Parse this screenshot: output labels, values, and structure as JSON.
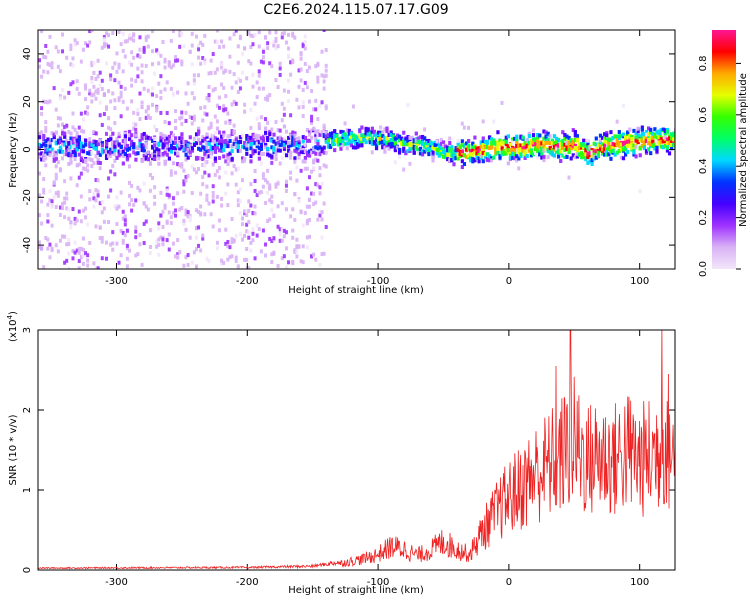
{
  "title": "C2E6.2024.115.07.17.G09",
  "chart_data": [
    {
      "type": "heatmap",
      "xlabel": "Height of straight line (km)",
      "ylabel": "Frequency (Hz)",
      "xlim": [
        -360,
        127
      ],
      "ylim": [
        -50,
        50
      ],
      "xticks": [
        -300,
        -200,
        -100,
        0,
        100
      ],
      "yticks": [
        -40,
        -20,
        0,
        20,
        40
      ],
      "colorbar": {
        "label": "Normalized spectral amplitude",
        "range": [
          0,
          0.93
        ],
        "ticks": [
          0.0,
          0.2,
          0.4,
          0.6,
          0.8
        ],
        "tick_labels": [
          "0.0",
          "0.2",
          "0.4",
          "0.6",
          "0.8"
        ],
        "colors": [
          "#f3e6fb",
          "#d9b3f5",
          "#9f33ff",
          "#4400ff",
          "#0033ff",
          "#00d8ff",
          "#00ff66",
          "#33ff00",
          "#e6ff00",
          "#ffaa00",
          "#ff0000",
          "#ff1493"
        ]
      },
      "ridge": {
        "x": [
          -360,
          -300,
          -250,
          -200,
          -160,
          -130,
          -110,
          -90,
          -80,
          -70,
          -60,
          -50,
          -40,
          -30,
          -20,
          -10,
          0,
          10,
          20,
          30,
          40,
          50,
          60,
          70,
          80,
          90,
          100,
          110,
          120,
          127
        ],
        "frequency": [
          1,
          1,
          1,
          1.5,
          2,
          4,
          5,
          4,
          2,
          2,
          1,
          -2,
          -1,
          -1,
          0,
          1,
          1,
          1,
          2,
          2,
          1,
          2,
          -2,
          1,
          2,
          3,
          3,
          4,
          4,
          3
        ]
      }
    },
    {
      "type": "line",
      "xlabel": "Height of straight line (km)",
      "ylabel": "SNR (10 * v/v)",
      "multiplier_label": "(x10",
      "multiplier_exp": "4",
      "xlim": [
        -360,
        127
      ],
      "ylim": [
        0,
        3
      ],
      "xticks": [
        -300,
        -200,
        -100,
        0,
        100
      ],
      "yticks": [
        0,
        1,
        2,
        3
      ],
      "color": "#ee2222",
      "envelope": {
        "x": [
          -360,
          -200,
          -150,
          -130,
          -110,
          -100,
          -90,
          -80,
          -70,
          -60,
          -50,
          -40,
          -30,
          -20,
          -10,
          0,
          10,
          20,
          30,
          40,
          50,
          60,
          70,
          80,
          90,
          100,
          110,
          120,
          127
        ],
        "y": [
          0.03,
          0.04,
          0.06,
          0.12,
          0.22,
          0.3,
          0.45,
          0.4,
          0.28,
          0.38,
          0.55,
          0.4,
          0.3,
          0.75,
          1.1,
          1.4,
          1.6,
          1.85,
          2.0,
          2.2,
          2.45,
          2.1,
          2.2,
          2.1,
          2.3,
          2.1,
          2.2,
          2.5,
          2.1
        ]
      },
      "peaks": [
        {
          "x": 47,
          "y": 3.05
        },
        {
          "x": 117,
          "y": 3.05
        },
        {
          "x": 36,
          "y": 2.55
        },
        {
          "x": 122,
          "y": 2.45
        }
      ]
    }
  ]
}
